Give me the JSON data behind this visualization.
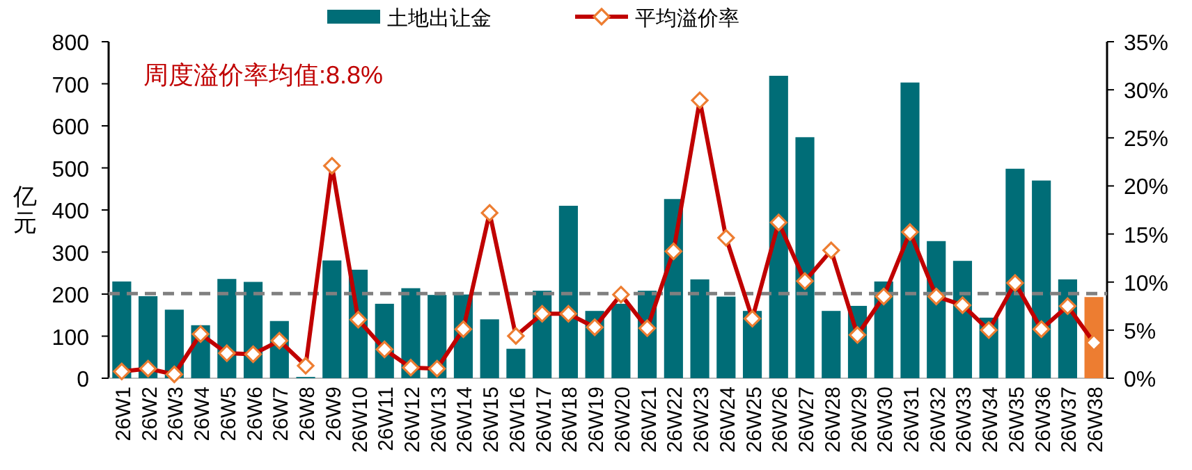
{
  "chart_data": {
    "type": "bar",
    "ylabel": "亿元",
    "annotations": [
      "周度溢价率均值:8.8%"
    ],
    "categories": [
      "26W1",
      "26W2",
      "26W3",
      "26W4",
      "26W5",
      "26W6",
      "26W7",
      "26W8",
      "26W9",
      "26W10",
      "26W11",
      "26W12",
      "26W13",
      "26W14",
      "26W15",
      "26W16",
      "26W17",
      "26W18",
      "26W19",
      "26W20",
      "26W21",
      "26W22",
      "26W23",
      "26W24",
      "26W25",
      "26W26",
      "26W27",
      "26W28",
      "26W29",
      "26W30",
      "26W31",
      "26W32",
      "26W33",
      "26W34",
      "26W35",
      "26W36",
      "26W37",
      "26W38"
    ],
    "series": [
      {
        "name": "土地出让金",
        "color": "#006d77",
        "colors": [
          "#006d77",
          "#006d77",
          "#006d77",
          "#006d77",
          "#006d77",
          "#006d77",
          "#006d77",
          "#006d77",
          "#006d77",
          "#006d77",
          "#006d77",
          "#006d77",
          "#006d77",
          "#006d77",
          "#006d77",
          "#006d77",
          "#006d77",
          "#006d77",
          "#006d77",
          "#006d77",
          "#006d77",
          "#006d77",
          "#006d77",
          "#006d77",
          "#006d77",
          "#006d77",
          "#006d77",
          "#006d77",
          "#006d77",
          "#006d77",
          "#006d77",
          "#006d77",
          "#006d77",
          "#006d77",
          "#006d77",
          "#006d77",
          "#006d77",
          "#ed7d31"
        ],
        "values": [
          230,
          195,
          163,
          126,
          236,
          229,
          136,
          3,
          280,
          258,
          177,
          214,
          198,
          199,
          140,
          70,
          208,
          410,
          160,
          177,
          208,
          426,
          235,
          194,
          160,
          719,
          573,
          160,
          172,
          230,
          703,
          326,
          279,
          144,
          498,
          470,
          235,
          193
        ]
      },
      {
        "name": "平均溢价率",
        "type": "line",
        "axis": "y2",
        "color": "#c00000",
        "values": [
          0.7,
          1.0,
          0.4,
          4.6,
          2.6,
          2.5,
          3.9,
          1.3,
          22.1,
          6.1,
          3.0,
          1.1,
          1.0,
          5.1,
          17.2,
          4.4,
          6.7,
          6.7,
          5.3,
          8.7,
          5.2,
          13.2,
          28.9,
          14.6,
          6.2,
          16.2,
          10.1,
          13.3,
          4.5,
          8.5,
          15.2,
          8.5,
          7.6,
          5.0,
          9.9,
          5.1,
          7.5,
          3.7
        ]
      }
    ],
    "ylim": [
      0,
      800
    ],
    "yticks": [
      0,
      100,
      200,
      300,
      400,
      500,
      600,
      700,
      800
    ],
    "y2lim": [
      0,
      35
    ],
    "y2ticks": [
      {
        "value": 0,
        "label": "0%"
      },
      {
        "value": 5,
        "label": "5%"
      },
      {
        "value": 10,
        "label": "10%"
      },
      {
        "value": 15,
        "label": "15%"
      },
      {
        "value": 20,
        "label": "20%"
      },
      {
        "value": 25,
        "label": "25%"
      },
      {
        "value": 30,
        "label": "30%"
      },
      {
        "value": 35,
        "label": "35%"
      }
    ],
    "ref_lines": [
      {
        "axis": "y2",
        "value": 8.8,
        "color": "#808080",
        "line_style": "dashed"
      }
    ],
    "marker": "diamond",
    "legend": "top"
  }
}
